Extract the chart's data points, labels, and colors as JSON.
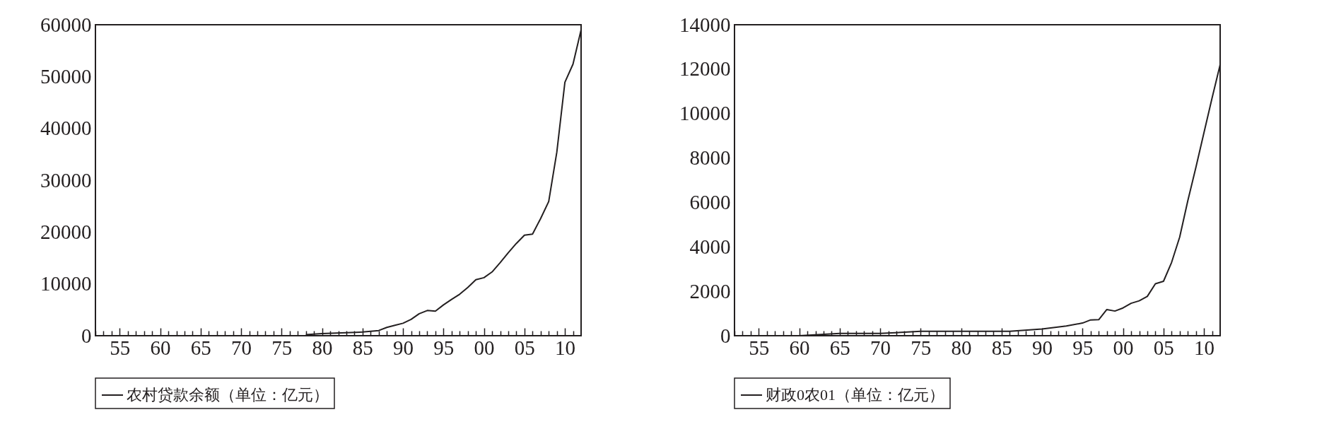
{
  "chart_data": [
    {
      "type": "line",
      "xlim": [
        1952,
        2012
      ],
      "ylim": [
        0,
        60000
      ],
      "yticks": [
        0,
        10000,
        20000,
        30000,
        40000,
        50000,
        60000
      ],
      "xticks": [
        {
          "value": 1952,
          "label": null
        },
        {
          "value": 1953,
          "label": null
        },
        {
          "value": 1954,
          "label": null
        },
        {
          "value": 1955,
          "label": "55"
        },
        {
          "value": 1956,
          "label": null
        },
        {
          "value": 1957,
          "label": null
        },
        {
          "value": 1958,
          "label": null
        },
        {
          "value": 1959,
          "label": null
        },
        {
          "value": 1960,
          "label": "60"
        },
        {
          "value": 1961,
          "label": null
        },
        {
          "value": 1962,
          "label": null
        },
        {
          "value": 1963,
          "label": null
        },
        {
          "value": 1964,
          "label": null
        },
        {
          "value": 1965,
          "label": "65"
        },
        {
          "value": 1966,
          "label": null
        },
        {
          "value": 1967,
          "label": null
        },
        {
          "value": 1968,
          "label": null
        },
        {
          "value": 1969,
          "label": null
        },
        {
          "value": 1970,
          "label": "70"
        },
        {
          "value": 1971,
          "label": null
        },
        {
          "value": 1972,
          "label": null
        },
        {
          "value": 1973,
          "label": null
        },
        {
          "value": 1974,
          "label": null
        },
        {
          "value": 1975,
          "label": "75"
        },
        {
          "value": 1976,
          "label": null
        },
        {
          "value": 1977,
          "label": null
        },
        {
          "value": 1978,
          "label": null
        },
        {
          "value": 1979,
          "label": null
        },
        {
          "value": 1980,
          "label": "80"
        },
        {
          "value": 1981,
          "label": null
        },
        {
          "value": 1982,
          "label": null
        },
        {
          "value": 1983,
          "label": null
        },
        {
          "value": 1984,
          "label": null
        },
        {
          "value": 1985,
          "label": "85"
        },
        {
          "value": 1986,
          "label": null
        },
        {
          "value": 1987,
          "label": null
        },
        {
          "value": 1988,
          "label": null
        },
        {
          "value": 1989,
          "label": null
        },
        {
          "value": 1990,
          "label": "90"
        },
        {
          "value": 1991,
          "label": null
        },
        {
          "value": 1992,
          "label": null
        },
        {
          "value": 1993,
          "label": null
        },
        {
          "value": 1994,
          "label": null
        },
        {
          "value": 1995,
          "label": "95"
        },
        {
          "value": 1996,
          "label": null
        },
        {
          "value": 1997,
          "label": null
        },
        {
          "value": 1998,
          "label": null
        },
        {
          "value": 1999,
          "label": null
        },
        {
          "value": 2000,
          "label": "00"
        },
        {
          "value": 2001,
          "label": null
        },
        {
          "value": 2002,
          "label": null
        },
        {
          "value": 2003,
          "label": null
        },
        {
          "value": 2004,
          "label": null
        },
        {
          "value": 2005,
          "label": "05"
        },
        {
          "value": 2006,
          "label": null
        },
        {
          "value": 2007,
          "label": null
        },
        {
          "value": 2008,
          "label": null
        },
        {
          "value": 2009,
          "label": null
        },
        {
          "value": 2010,
          "label": "10"
        },
        {
          "value": 2011,
          "label": null
        }
      ],
      "x": [
        1978,
        1980,
        1985,
        1987,
        1988,
        1989,
        1990,
        1991,
        1992,
        1993,
        1994,
        1995,
        1996,
        1997,
        1998,
        1999,
        2000,
        2001,
        2002,
        2003,
        2004,
        2005,
        2006,
        2007,
        2008,
        2009,
        2010,
        2011,
        2012
      ],
      "series": [
        {
          "name": "农村贷款余额（单位：亿元）",
          "color": "#231f20",
          "values": [
            200,
            400,
            700,
            1000,
            1600,
            2000,
            2400,
            3150,
            4250,
            4860,
            4740,
            5950,
            7000,
            8000,
            9300,
            10800,
            11200,
            12300,
            14100,
            16000,
            17800,
            19400,
            19600,
            22600,
            25900,
            35400,
            48900,
            52400,
            59000
          ]
        }
      ],
      "legend": "bottom",
      "grid": false,
      "marker": "none",
      "line_style": "solid"
    },
    {
      "type": "line",
      "xlim": [
        1952,
        2012
      ],
      "ylim": [
        0,
        14000
      ],
      "yticks": [
        0,
        2000,
        4000,
        6000,
        8000,
        10000,
        12000,
        14000
      ],
      "xticks": [
        {
          "value": 1952,
          "label": null
        },
        {
          "value": 1953,
          "label": null
        },
        {
          "value": 1954,
          "label": null
        },
        {
          "value": 1955,
          "label": "55"
        },
        {
          "value": 1956,
          "label": null
        },
        {
          "value": 1957,
          "label": null
        },
        {
          "value": 1958,
          "label": null
        },
        {
          "value": 1959,
          "label": null
        },
        {
          "value": 1960,
          "label": "60"
        },
        {
          "value": 1961,
          "label": null
        },
        {
          "value": 1962,
          "label": null
        },
        {
          "value": 1963,
          "label": null
        },
        {
          "value": 1964,
          "label": null
        },
        {
          "value": 1965,
          "label": "65"
        },
        {
          "value": 1966,
          "label": null
        },
        {
          "value": 1967,
          "label": null
        },
        {
          "value": 1968,
          "label": null
        },
        {
          "value": 1969,
          "label": null
        },
        {
          "value": 1970,
          "label": "70"
        },
        {
          "value": 1971,
          "label": null
        },
        {
          "value": 1972,
          "label": null
        },
        {
          "value": 1973,
          "label": null
        },
        {
          "value": 1974,
          "label": null
        },
        {
          "value": 1975,
          "label": "75"
        },
        {
          "value": 1976,
          "label": null
        },
        {
          "value": 1977,
          "label": null
        },
        {
          "value": 1978,
          "label": null
        },
        {
          "value": 1979,
          "label": null
        },
        {
          "value": 1980,
          "label": "80"
        },
        {
          "value": 1981,
          "label": null
        },
        {
          "value": 1982,
          "label": null
        },
        {
          "value": 1983,
          "label": null
        },
        {
          "value": 1984,
          "label": null
        },
        {
          "value": 1985,
          "label": "85"
        },
        {
          "value": 1986,
          "label": null
        },
        {
          "value": 1987,
          "label": null
        },
        {
          "value": 1988,
          "label": null
        },
        {
          "value": 1989,
          "label": null
        },
        {
          "value": 1990,
          "label": "90"
        },
        {
          "value": 1991,
          "label": null
        },
        {
          "value": 1992,
          "label": null
        },
        {
          "value": 1993,
          "label": null
        },
        {
          "value": 1994,
          "label": null
        },
        {
          "value": 1995,
          "label": "95"
        },
        {
          "value": 1996,
          "label": null
        },
        {
          "value": 1997,
          "label": null
        },
        {
          "value": 1998,
          "label": null
        },
        {
          "value": 1999,
          "label": null
        },
        {
          "value": 2000,
          "label": "00"
        },
        {
          "value": 2001,
          "label": null
        },
        {
          "value": 2002,
          "label": null
        },
        {
          "value": 2003,
          "label": null
        },
        {
          "value": 2004,
          "label": null
        },
        {
          "value": 2005,
          "label": "05"
        },
        {
          "value": 2006,
          "label": null
        },
        {
          "value": 2007,
          "label": null
        },
        {
          "value": 2008,
          "label": null
        },
        {
          "value": 2009,
          "label": null
        },
        {
          "value": 2010,
          "label": "10"
        },
        {
          "value": 2011,
          "label": null
        }
      ],
      "x": [
        1957,
        1960,
        1965,
        1970,
        1975,
        1979,
        1985,
        1986,
        1990,
        1993,
        1995,
        1996,
        1997,
        1998,
        1999,
        2000,
        2001,
        2002,
        2003,
        2004,
        2005,
        2006,
        2007,
        2008,
        2009,
        2010,
        2011,
        2012
      ],
      "series": [
        {
          "name": "财政0农01（单位：亿元）",
          "color": "#231f20",
          "values": [
            0,
            0,
            100,
            100,
            200,
            200,
            200,
            200,
            300,
            440,
            570,
            710,
            720,
            1180,
            1110,
            1250,
            1460,
            1570,
            1770,
            2340,
            2450,
            3300,
            4440,
            6070,
            7570,
            9140,
            10700,
            12200
          ]
        }
      ],
      "legend": "bottom",
      "grid": false,
      "marker": "none",
      "line_style": "solid"
    }
  ]
}
